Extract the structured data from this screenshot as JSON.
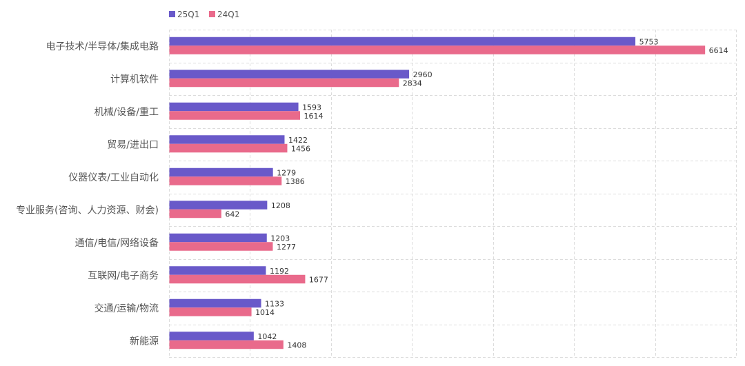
{
  "chart_data": {
    "type": "bar",
    "orientation": "horizontal",
    "title": "",
    "xlabel": "",
    "ylabel": "",
    "xlim": [
      0,
      7000
    ],
    "x_tick_step": 1000,
    "grid": true,
    "legend_position": "top-left",
    "categories": [
      "电子技术/半导体/集成电路",
      "计算机软件",
      "机械/设备/重工",
      "贸易/进出口",
      "仪器仪表/工业自动化",
      "专业服务(咨询、人力资源、财会)",
      "通信/电信/网络设备",
      "互联网/电子商务",
      "交通/运输/物流",
      "新能源"
    ],
    "series": [
      {
        "name": "25Q1",
        "color": "#6959c9",
        "values": [
          5753,
          2960,
          1593,
          1422,
          1279,
          1208,
          1203,
          1192,
          1133,
          1042
        ],
        "labels": [
          "5753",
          "2960",
          "1593",
          "1422",
          "1279",
          "1208",
          "1203",
          "1192",
          "1133",
          "1042"
        ]
      },
      {
        "name": "24Q1",
        "color": "#e96a8b",
        "values": [
          6614,
          2834,
          1614,
          1456,
          1386,
          642,
          1277,
          1677,
          1014,
          1408
        ],
        "labels": [
          "6614",
          "2834",
          "1614",
          "1456",
          "1386",
          "642",
          "1277",
          "1677",
          "1014",
          "1408"
        ]
      }
    ]
  }
}
